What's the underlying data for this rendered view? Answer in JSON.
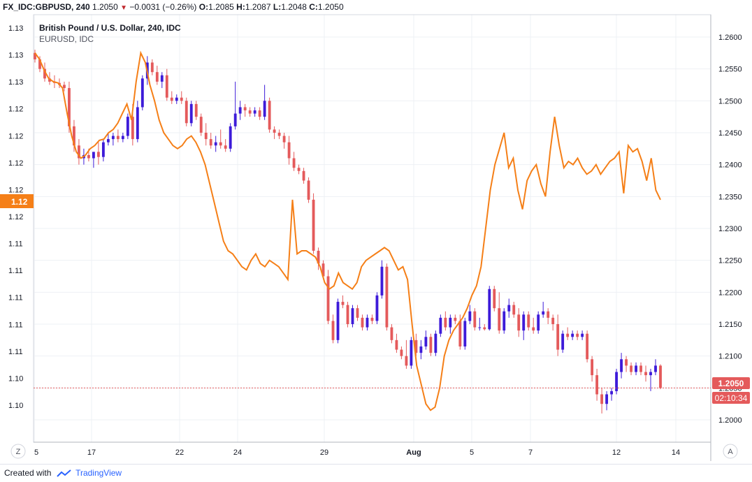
{
  "header": {
    "symbol": "FX_IDC:GBPUSD, 240",
    "last": "1.2050",
    "change": "−0.0031 (−0.26%)",
    "open_label": "O:",
    "open": "1.2085",
    "high_label": "H:",
    "high": "1.2087",
    "low_label": "L:",
    "low": "1.2048",
    "close_label": "C:",
    "close": "1.2050"
  },
  "legend": {
    "main": "British Pound / U.S. Dollar, 240, IDC",
    "compare": "EURUSD, IDC"
  },
  "footer": {
    "created_with": "Created with",
    "brand": "TradingView"
  },
  "buttons": {
    "zoom": "Z",
    "auto": "A"
  },
  "colors": {
    "up": "#3d1bd9",
    "down": "#e45a5b",
    "line": "#f57f17",
    "grid": "#eef0f4",
    "price_tag": "#e45a5b",
    "left_tag": "#f57f17"
  },
  "chart_data": {
    "type": "candlestick",
    "title": "British Pound / U.S. Dollar, 240, IDC",
    "x_tick_labels": [
      "5",
      "17",
      "22",
      "24",
      "29",
      "Aug",
      "5",
      "7",
      "12",
      "14"
    ],
    "right_axis": {
      "ticks": [
        "1.2600",
        "1.2550",
        "1.2500",
        "1.2450",
        "1.2400",
        "1.2350",
        "1.2300",
        "1.2250",
        "1.2200",
        "1.2150",
        "1.2100",
        "1.2050",
        "1.2000"
      ],
      "range": [
        1.1965,
        1.2635
      ]
    },
    "left_axis": {
      "ticks": [
        "1.13",
        "1.13",
        "1.13",
        "1.12",
        "1.12",
        "1.12",
        "1.12",
        "1.12",
        "1.11",
        "1.11",
        "1.11",
        "1.11",
        "1.11",
        "1.10",
        "1.10"
      ],
      "current_label": "1.12"
    },
    "last_price": {
      "value": "1.2050",
      "countdown": "02:10:34"
    },
    "candles": [
      [
        1.2575,
        1.258,
        1.256,
        1.2565
      ],
      [
        1.2565,
        1.257,
        1.2545,
        1.255
      ],
      [
        1.255,
        1.256,
        1.253,
        1.2535
      ],
      [
        1.2535,
        1.2545,
        1.2525,
        1.253
      ],
      [
        1.253,
        1.254,
        1.252,
        1.2528
      ],
      [
        1.2528,
        1.2535,
        1.252,
        1.2525
      ],
      [
        1.2525,
        1.253,
        1.2515,
        1.252
      ],
      [
        1.252,
        1.253,
        1.245,
        1.246
      ],
      [
        1.246,
        1.247,
        1.242,
        1.243
      ],
      [
        1.243,
        1.244,
        1.24,
        1.241
      ],
      [
        1.241,
        1.2425,
        1.24,
        1.2415
      ],
      [
        1.2415,
        1.2425,
        1.2405,
        1.241
      ],
      [
        1.241,
        1.242,
        1.2395,
        1.242
      ],
      [
        1.242,
        1.2435,
        1.24,
        1.2412
      ],
      [
        1.2412,
        1.244,
        1.2405,
        1.2435
      ],
      [
        1.2435,
        1.245,
        1.243,
        1.244
      ],
      [
        1.244,
        1.245,
        1.243,
        1.2445
      ],
      [
        1.2445,
        1.2455,
        1.2435,
        1.244
      ],
      [
        1.244,
        1.245,
        1.2435,
        1.2445
      ],
      [
        1.2445,
        1.248,
        1.244,
        1.2475
      ],
      [
        1.2475,
        1.2495,
        1.243,
        1.244
      ],
      [
        1.244,
        1.25,
        1.2435,
        1.249
      ],
      [
        1.249,
        1.254,
        1.2485,
        1.2535
      ],
      [
        1.2535,
        1.257,
        1.2525,
        1.256
      ],
      [
        1.256,
        1.2565,
        1.254,
        1.2545
      ],
      [
        1.2545,
        1.2555,
        1.2525,
        1.253
      ],
      [
        1.253,
        1.2545,
        1.252,
        1.254
      ],
      [
        1.254,
        1.255,
        1.25,
        1.2505
      ],
      [
        1.2505,
        1.2515,
        1.2495,
        1.25
      ],
      [
        1.25,
        1.251,
        1.2495,
        1.2505
      ],
      [
        1.2505,
        1.2515,
        1.2495,
        1.25
      ],
      [
        1.25,
        1.2505,
        1.246,
        1.2465
      ],
      [
        1.2465,
        1.25,
        1.246,
        1.2495
      ],
      [
        1.2495,
        1.25,
        1.247,
        1.2475
      ],
      [
        1.2475,
        1.248,
        1.2445,
        1.245
      ],
      [
        1.245,
        1.2465,
        1.243,
        1.244
      ],
      [
        1.244,
        1.245,
        1.2425,
        1.243
      ],
      [
        1.243,
        1.2445,
        1.242,
        1.2435
      ],
      [
        1.2435,
        1.2455,
        1.2425,
        1.243
      ],
      [
        1.243,
        1.244,
        1.242,
        1.2425
      ],
      [
        1.2425,
        1.2465,
        1.242,
        1.246
      ],
      [
        1.246,
        1.253,
        1.2455,
        1.248
      ],
      [
        1.248,
        1.25,
        1.247,
        1.249
      ],
      [
        1.249,
        1.2495,
        1.2475,
        1.2485
      ],
      [
        1.2485,
        1.249,
        1.2475,
        1.248
      ],
      [
        1.248,
        1.249,
        1.2475,
        1.2485
      ],
      [
        1.2485,
        1.249,
        1.247,
        1.2475
      ],
      [
        1.2475,
        1.2525,
        1.247,
        1.25
      ],
      [
        1.25,
        1.2505,
        1.245,
        1.2455
      ],
      [
        1.2455,
        1.246,
        1.244,
        1.245
      ],
      [
        1.245,
        1.2455,
        1.244,
        1.2445
      ],
      [
        1.2445,
        1.245,
        1.2425,
        1.2435
      ],
      [
        1.2435,
        1.2445,
        1.24,
        1.241
      ],
      [
        1.241,
        1.242,
        1.239,
        1.2395
      ],
      [
        1.2395,
        1.24,
        1.2385,
        1.239
      ],
      [
        1.239,
        1.2395,
        1.237,
        1.2375
      ],
      [
        1.2375,
        1.238,
        1.234,
        1.2345
      ],
      [
        1.2345,
        1.2355,
        1.226,
        1.2265
      ],
      [
        1.2265,
        1.227,
        1.2235,
        1.2245
      ],
      [
        1.2245,
        1.225,
        1.222,
        1.2225
      ],
      [
        1.2225,
        1.2235,
        1.215,
        1.2155
      ],
      [
        1.2155,
        1.2165,
        1.212,
        1.2125
      ],
      [
        1.2125,
        1.219,
        1.212,
        1.2185
      ],
      [
        1.2185,
        1.2195,
        1.2175,
        1.218
      ],
      [
        1.218,
        1.2185,
        1.2145,
        1.215
      ],
      [
        1.215,
        1.218,
        1.2145,
        1.2175
      ],
      [
        1.2175,
        1.218,
        1.2155,
        1.216
      ],
      [
        1.216,
        1.2165,
        1.214,
        1.2145
      ],
      [
        1.2145,
        1.2165,
        1.214,
        1.216
      ],
      [
        1.216,
        1.2165,
        1.215,
        1.2155
      ],
      [
        1.2155,
        1.22,
        1.215,
        1.2195
      ],
      [
        1.2195,
        1.225,
        1.219,
        1.224
      ],
      [
        1.224,
        1.2245,
        1.214,
        1.2145
      ],
      [
        1.2145,
        1.215,
        1.212,
        1.2125
      ],
      [
        1.2125,
        1.2135,
        1.2105,
        1.211
      ],
      [
        1.211,
        1.2115,
        1.2095,
        1.21
      ],
      [
        1.21,
        1.2125,
        1.208,
        1.2085
      ],
      [
        1.2085,
        1.213,
        1.208,
        1.2125
      ],
      [
        1.2125,
        1.2135,
        1.21,
        1.2105
      ],
      [
        1.2105,
        1.2125,
        1.2095,
        1.2115
      ],
      [
        1.2115,
        1.214,
        1.211,
        1.213
      ],
      [
        1.213,
        1.2135,
        1.21,
        1.2105
      ],
      [
        1.2105,
        1.214,
        1.21,
        1.2135
      ],
      [
        1.2135,
        1.2165,
        1.213,
        1.216
      ],
      [
        1.216,
        1.217,
        1.214,
        1.2145
      ],
      [
        1.2145,
        1.2165,
        1.2135,
        1.216
      ],
      [
        1.216,
        1.2165,
        1.215,
        1.2155
      ],
      [
        1.2155,
        1.2165,
        1.211,
        1.2115
      ],
      [
        1.2115,
        1.216,
        1.211,
        1.2155
      ],
      [
        1.2155,
        1.218,
        1.215,
        1.217
      ],
      [
        1.217,
        1.2175,
        1.214,
        1.2145
      ],
      [
        1.2145,
        1.216,
        1.214,
        1.2145
      ],
      [
        1.2145,
        1.215,
        1.214,
        1.2142
      ],
      [
        1.2142,
        1.221,
        1.214,
        1.2205
      ],
      [
        1.2205,
        1.221,
        1.217,
        1.2175
      ],
      [
        1.2175,
        1.22,
        1.2135,
        1.214
      ],
      [
        1.214,
        1.2175,
        1.2135,
        1.217
      ],
      [
        1.217,
        1.219,
        1.216,
        1.218
      ],
      [
        1.218,
        1.2185,
        1.216,
        1.2165
      ],
      [
        1.2165,
        1.2175,
        1.213,
        1.214
      ],
      [
        1.214,
        1.217,
        1.2125,
        1.2165
      ],
      [
        1.2165,
        1.217,
        1.214,
        1.2145
      ],
      [
        1.2145,
        1.216,
        1.2135,
        1.214
      ],
      [
        1.214,
        1.217,
        1.2135,
        1.2165
      ],
      [
        1.2165,
        1.2185,
        1.216,
        1.217
      ],
      [
        1.217,
        1.2175,
        1.215,
        1.216
      ],
      [
        1.216,
        1.2165,
        1.214,
        1.215
      ],
      [
        1.215,
        1.2165,
        1.21,
        1.211
      ],
      [
        1.211,
        1.214,
        1.2105,
        1.2135
      ],
      [
        1.2135,
        1.2145,
        1.2125,
        1.213
      ],
      [
        1.213,
        1.214,
        1.2125,
        1.2135
      ],
      [
        1.2135,
        1.214,
        1.2125,
        1.213
      ],
      [
        1.213,
        1.214,
        1.2125,
        1.2135
      ],
      [
        1.2135,
        1.214,
        1.209,
        1.2095
      ],
      [
        1.2095,
        1.21,
        1.206,
        1.207
      ],
      [
        1.207,
        1.208,
        1.203,
        1.204
      ],
      [
        1.204,
        1.205,
        1.201,
        1.2025
      ],
      [
        1.2025,
        1.2045,
        1.2015,
        1.204
      ],
      [
        1.204,
        1.205,
        1.203,
        1.2045
      ],
      [
        1.2045,
        1.208,
        1.204,
        1.2075
      ],
      [
        1.2075,
        1.2105,
        1.2065,
        1.2095
      ],
      [
        1.2095,
        1.21,
        1.2075,
        1.2085
      ],
      [
        1.2085,
        1.209,
        1.207,
        1.2075
      ],
      [
        1.2075,
        1.209,
        1.207,
        1.2085
      ],
      [
        1.2085,
        1.209,
        1.207,
        1.2075
      ],
      [
        1.2075,
        1.2085,
        1.206,
        1.207
      ],
      [
        1.207,
        1.208,
        1.2045,
        1.2075
      ],
      [
        1.2075,
        1.2095,
        1.207,
        1.2085
      ],
      [
        1.2085,
        1.2087,
        1.2048,
        1.205
      ]
    ],
    "compare_series": {
      "name": "EURUSD, IDC",
      "values": [
        1.2575,
        1.2565,
        1.2548,
        1.2535,
        1.253,
        1.2528,
        1.252,
        1.248,
        1.2445,
        1.242,
        1.241,
        1.2415,
        1.2425,
        1.243,
        1.2438,
        1.244,
        1.245,
        1.2455,
        1.2465,
        1.248,
        1.2495,
        1.247,
        1.253,
        1.2575,
        1.256,
        1.2525,
        1.25,
        1.247,
        1.245,
        1.244,
        1.243,
        1.2425,
        1.243,
        1.244,
        1.2445,
        1.2435,
        1.242,
        1.24,
        1.237,
        1.234,
        1.231,
        1.228,
        1.2265,
        1.226,
        1.225,
        1.224,
        1.2235,
        1.225,
        1.226,
        1.2245,
        1.224,
        1.225,
        1.2245,
        1.224,
        1.223,
        1.222,
        1.2345,
        1.226,
        1.2265,
        1.2265,
        1.226,
        1.2255,
        1.224,
        1.2215,
        1.2205,
        1.221,
        1.223,
        1.2215,
        1.221,
        1.2205,
        1.2215,
        1.224,
        1.225,
        1.2255,
        1.226,
        1.2265,
        1.227,
        1.2265,
        1.225,
        1.2235,
        1.224,
        1.222,
        1.215,
        1.2085,
        1.2055,
        1.2025,
        1.2015,
        1.202,
        1.205,
        1.21,
        1.2125,
        1.214,
        1.215,
        1.216,
        1.2175,
        1.2195,
        1.221,
        1.224,
        1.23,
        1.236,
        1.24,
        1.2425,
        1.245,
        1.2395,
        1.241,
        1.236,
        1.233,
        1.2375,
        1.239,
        1.24,
        1.237,
        1.235,
        1.242,
        1.2475,
        1.243,
        1.2395,
        1.2405,
        1.24,
        1.241,
        1.2395,
        1.2385,
        1.239,
        1.24,
        1.2385,
        1.2395,
        1.2405,
        1.241,
        1.242,
        1.2355,
        1.243,
        1.242,
        1.2425,
        1.2405,
        1.2375,
        1.241,
        1.236,
        1.2345
      ]
    }
  }
}
